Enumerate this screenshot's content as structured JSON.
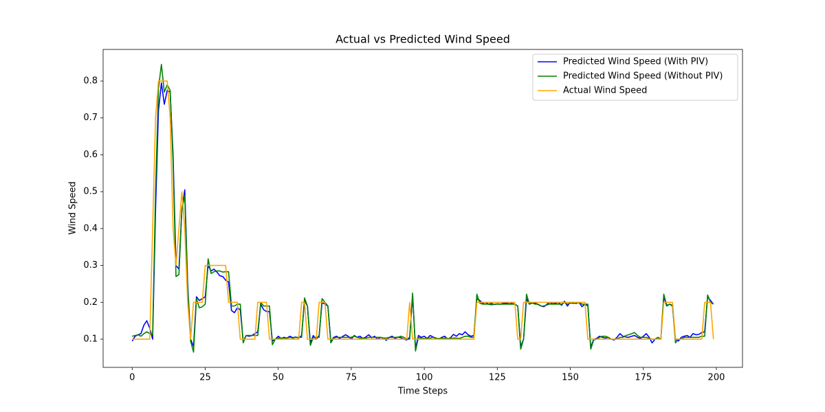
{
  "chart_data": {
    "type": "line",
    "title": "Actual vs Predicted Wind Speed",
    "xlabel": "Time Steps",
    "ylabel": "Wind Speed",
    "legend": "upper right",
    "grid": false,
    "xlim": [
      -9.95,
      208.95
    ],
    "ylim": [
      0.0236,
      0.8857
    ],
    "xticks": [
      0,
      25,
      50,
      75,
      100,
      125,
      150,
      175,
      200
    ],
    "yticks": [
      0.1,
      0.2,
      0.3,
      0.4,
      0.5,
      0.6,
      0.7,
      0.8
    ],
    "x": [
      0,
      1,
      2,
      3,
      4,
      5,
      6,
      7,
      8,
      9,
      10,
      11,
      12,
      13,
      14,
      15,
      16,
      17,
      18,
      19,
      20,
      21,
      22,
      23,
      24,
      25,
      26,
      27,
      28,
      29,
      30,
      31,
      32,
      33,
      34,
      35,
      36,
      37,
      38,
      39,
      40,
      41,
      42,
      43,
      44,
      45,
      46,
      47,
      48,
      49,
      50,
      51,
      52,
      53,
      54,
      55,
      56,
      57,
      58,
      59,
      60,
      61,
      62,
      63,
      64,
      65,
      66,
      67,
      68,
      69,
      70,
      71,
      72,
      73,
      74,
      75,
      76,
      77,
      78,
      79,
      80,
      81,
      82,
      83,
      84,
      85,
      86,
      87,
      88,
      89,
      90,
      91,
      92,
      93,
      94,
      95,
      96,
      97,
      98,
      99,
      100,
      101,
      102,
      103,
      104,
      105,
      106,
      107,
      108,
      109,
      110,
      111,
      112,
      113,
      114,
      115,
      116,
      117,
      118,
      119,
      120,
      121,
      122,
      123,
      124,
      125,
      126,
      127,
      128,
      129,
      130,
      131,
      132,
      133,
      134,
      135,
      136,
      137,
      138,
      139,
      140,
      141,
      142,
      143,
      144,
      145,
      146,
      147,
      148,
      149,
      150,
      151,
      152,
      153,
      154,
      155,
      156,
      157,
      158,
      159,
      160,
      161,
      162,
      163,
      164,
      165,
      166,
      167,
      168,
      169,
      170,
      171,
      172,
      173,
      174,
      175,
      176,
      177,
      178,
      179,
      180,
      181,
      182,
      183,
      184,
      185,
      186,
      187,
      188,
      189,
      190,
      191,
      192,
      193,
      194,
      195,
      196,
      197,
      198,
      199
    ],
    "series": [
      {
        "name": "Predicted Wind Speed (With PIV)",
        "color": "#0000ff",
        "values": [
          0.095,
          0.108,
          0.112,
          0.115,
          0.138,
          0.15,
          0.13,
          0.1,
          0.45,
          0.72,
          0.795,
          0.737,
          0.775,
          0.77,
          0.6,
          0.3,
          0.29,
          0.45,
          0.505,
          0.25,
          0.1,
          0.08,
          0.215,
          0.205,
          0.21,
          0.215,
          0.3,
          0.285,
          0.29,
          0.282,
          0.272,
          0.27,
          0.26,
          0.255,
          0.178,
          0.172,
          0.185,
          0.18,
          0.095,
          0.11,
          0.108,
          0.11,
          0.115,
          0.12,
          0.195,
          0.18,
          0.175,
          0.175,
          0.095,
          0.1,
          0.108,
          0.102,
          0.105,
          0.103,
          0.108,
          0.104,
          0.106,
          0.103,
          0.11,
          0.205,
          0.19,
          0.09,
          0.11,
          0.1,
          0.11,
          0.2,
          0.195,
          0.19,
          0.095,
          0.105,
          0.108,
          0.102,
          0.107,
          0.112,
          0.108,
          0.1,
          0.11,
          0.105,
          0.108,
          0.102,
          0.106,
          0.112,
          0.104,
          0.108,
          0.1,
          0.105,
          0.103,
          0.097,
          0.105,
          0.108,
          0.102,
          0.106,
          0.104,
          0.1,
          0.098,
          0.105,
          0.22,
          0.075,
          0.11,
          0.105,
          0.108,
          0.102,
          0.11,
          0.106,
          0.103,
          0.1,
          0.105,
          0.108,
          0.1,
          0.104,
          0.113,
          0.108,
          0.115,
          0.112,
          0.12,
          0.112,
          0.108,
          0.11,
          0.21,
          0.205,
          0.198,
          0.2,
          0.195,
          0.197,
          0.194,
          0.196,
          0.195,
          0.197,
          0.198,
          0.196,
          0.197,
          0.195,
          0.19,
          0.08,
          0.1,
          0.21,
          0.195,
          0.2,
          0.198,
          0.194,
          0.19,
          0.188,
          0.195,
          0.2,
          0.196,
          0.198,
          0.2,
          0.192,
          0.203,
          0.19,
          0.2,
          0.198,
          0.197,
          0.2,
          0.188,
          0.195,
          0.19,
          0.078,
          0.1,
          0.102,
          0.108,
          0.105,
          0.103,
          0.105,
          0.1,
          0.098,
          0.105,
          0.115,
          0.108,
          0.106,
          0.105,
          0.108,
          0.11,
          0.105,
          0.102,
          0.108,
          0.115,
          0.105,
          0.09,
          0.1,
          0.105,
          0.1,
          0.215,
          0.19,
          0.195,
          0.19,
          0.1,
          0.095,
          0.105,
          0.108,
          0.11,
          0.105,
          0.115,
          0.112,
          0.113,
          0.118,
          0.12,
          0.215,
          0.205,
          0.195
        ]
      },
      {
        "name": "Predicted Wind Speed (Without PIV)",
        "color": "#008000",
        "values": [
          0.108,
          0.11,
          0.112,
          0.108,
          0.115,
          0.12,
          0.115,
          0.112,
          0.5,
          0.78,
          0.845,
          0.77,
          0.79,
          0.775,
          0.58,
          0.27,
          0.275,
          0.45,
          0.49,
          0.24,
          0.095,
          0.065,
          0.21,
          0.185,
          0.188,
          0.195,
          0.318,
          0.278,
          0.283,
          0.285,
          0.285,
          0.282,
          0.283,
          0.283,
          0.19,
          0.19,
          0.195,
          0.195,
          0.09,
          0.11,
          0.11,
          0.11,
          0.11,
          0.11,
          0.2,
          0.19,
          0.19,
          0.19,
          0.085,
          0.1,
          0.103,
          0.103,
          0.103,
          0.103,
          0.105,
          0.103,
          0.105,
          0.105,
          0.105,
          0.212,
          0.19,
          0.083,
          0.105,
          0.105,
          0.105,
          0.21,
          0.2,
          0.19,
          0.09,
          0.103,
          0.105,
          0.105,
          0.105,
          0.105,
          0.105,
          0.105,
          0.108,
          0.105,
          0.103,
          0.103,
          0.103,
          0.105,
          0.105,
          0.105,
          0.105,
          0.105,
          0.103,
          0.103,
          0.105,
          0.105,
          0.105,
          0.105,
          0.108,
          0.105,
          0.1,
          0.1,
          0.225,
          0.068,
          0.105,
          0.102,
          0.102,
          0.102,
          0.103,
          0.105,
          0.102,
          0.102,
          0.102,
          0.103,
          0.102,
          0.102,
          0.103,
          0.103,
          0.102,
          0.105,
          0.108,
          0.108,
          0.105,
          0.105,
          0.222,
          0.198,
          0.195,
          0.195,
          0.195,
          0.193,
          0.195,
          0.195,
          0.195,
          0.195,
          0.195,
          0.195,
          0.195,
          0.195,
          0.19,
          0.073,
          0.1,
          0.222,
          0.195,
          0.198,
          0.195,
          0.195,
          0.19,
          0.19,
          0.193,
          0.195,
          0.195,
          0.195,
          0.195,
          0.195,
          0.2,
          0.195,
          0.198,
          0.197,
          0.198,
          0.2,
          0.195,
          0.195,
          0.195,
          0.073,
          0.098,
          0.1,
          0.105,
          0.108,
          0.108,
          0.105,
          0.1,
          0.1,
          0.1,
          0.105,
          0.105,
          0.11,
          0.112,
          0.115,
          0.118,
          0.11,
          0.105,
          0.105,
          0.105,
          0.102,
          0.1,
          0.1,
          0.105,
          0.1,
          0.222,
          0.192,
          0.195,
          0.192,
          0.09,
          0.1,
          0.1,
          0.105,
          0.105,
          0.105,
          0.105,
          0.105,
          0.105,
          0.108,
          0.108,
          0.22,
          0.2,
          0.195
        ]
      },
      {
        "name": "Actual Wind Speed",
        "color": "#ffa500",
        "values": [
          0.1,
          0.1,
          0.1,
          0.1,
          0.1,
          0.1,
          0.1,
          0.4,
          0.7,
          0.8,
          0.8,
          0.8,
          0.8,
          0.7,
          0.4,
          0.3,
          0.4,
          0.5,
          0.4,
          0.2,
          0.1,
          0.2,
          0.2,
          0.2,
          0.2,
          0.3,
          0.3,
          0.3,
          0.3,
          0.3,
          0.3,
          0.3,
          0.3,
          0.2,
          0.2,
          0.2,
          0.2,
          0.1,
          0.1,
          0.1,
          0.1,
          0.1,
          0.1,
          0.2,
          0.2,
          0.2,
          0.2,
          0.1,
          0.1,
          0.1,
          0.1,
          0.1,
          0.1,
          0.1,
          0.1,
          0.1,
          0.1,
          0.1,
          0.2,
          0.2,
          0.1,
          0.1,
          0.1,
          0.1,
          0.2,
          0.2,
          0.2,
          0.1,
          0.1,
          0.1,
          0.1,
          0.1,
          0.1,
          0.1,
          0.1,
          0.1,
          0.1,
          0.1,
          0.1,
          0.1,
          0.1,
          0.1,
          0.1,
          0.1,
          0.1,
          0.1,
          0.1,
          0.1,
          0.1,
          0.1,
          0.1,
          0.1,
          0.1,
          0.1,
          0.1,
          0.2,
          0.1,
          0.1,
          0.1,
          0.1,
          0.1,
          0.1,
          0.1,
          0.1,
          0.1,
          0.1,
          0.1,
          0.1,
          0.1,
          0.1,
          0.1,
          0.1,
          0.1,
          0.1,
          0.1,
          0.1,
          0.1,
          0.1,
          0.2,
          0.2,
          0.2,
          0.2,
          0.2,
          0.2,
          0.2,
          0.2,
          0.2,
          0.2,
          0.2,
          0.2,
          0.2,
          0.2,
          0.1,
          0.1,
          0.2,
          0.2,
          0.2,
          0.2,
          0.2,
          0.2,
          0.2,
          0.2,
          0.2,
          0.2,
          0.2,
          0.2,
          0.2,
          0.2,
          0.2,
          0.2,
          0.2,
          0.2,
          0.2,
          0.2,
          0.2,
          0.2,
          0.1,
          0.1,
          0.1,
          0.1,
          0.1,
          0.1,
          0.1,
          0.1,
          0.1,
          0.1,
          0.1,
          0.1,
          0.1,
          0.1,
          0.1,
          0.1,
          0.1,
          0.1,
          0.1,
          0.1,
          0.1,
          0.1,
          0.1,
          0.1,
          0.1,
          0.1,
          0.2,
          0.2,
          0.2,
          0.2,
          0.1,
          0.1,
          0.1,
          0.1,
          0.1,
          0.1,
          0.1,
          0.1,
          0.1,
          0.1,
          0.2,
          0.2,
          0.2,
          0.1
        ]
      }
    ]
  }
}
